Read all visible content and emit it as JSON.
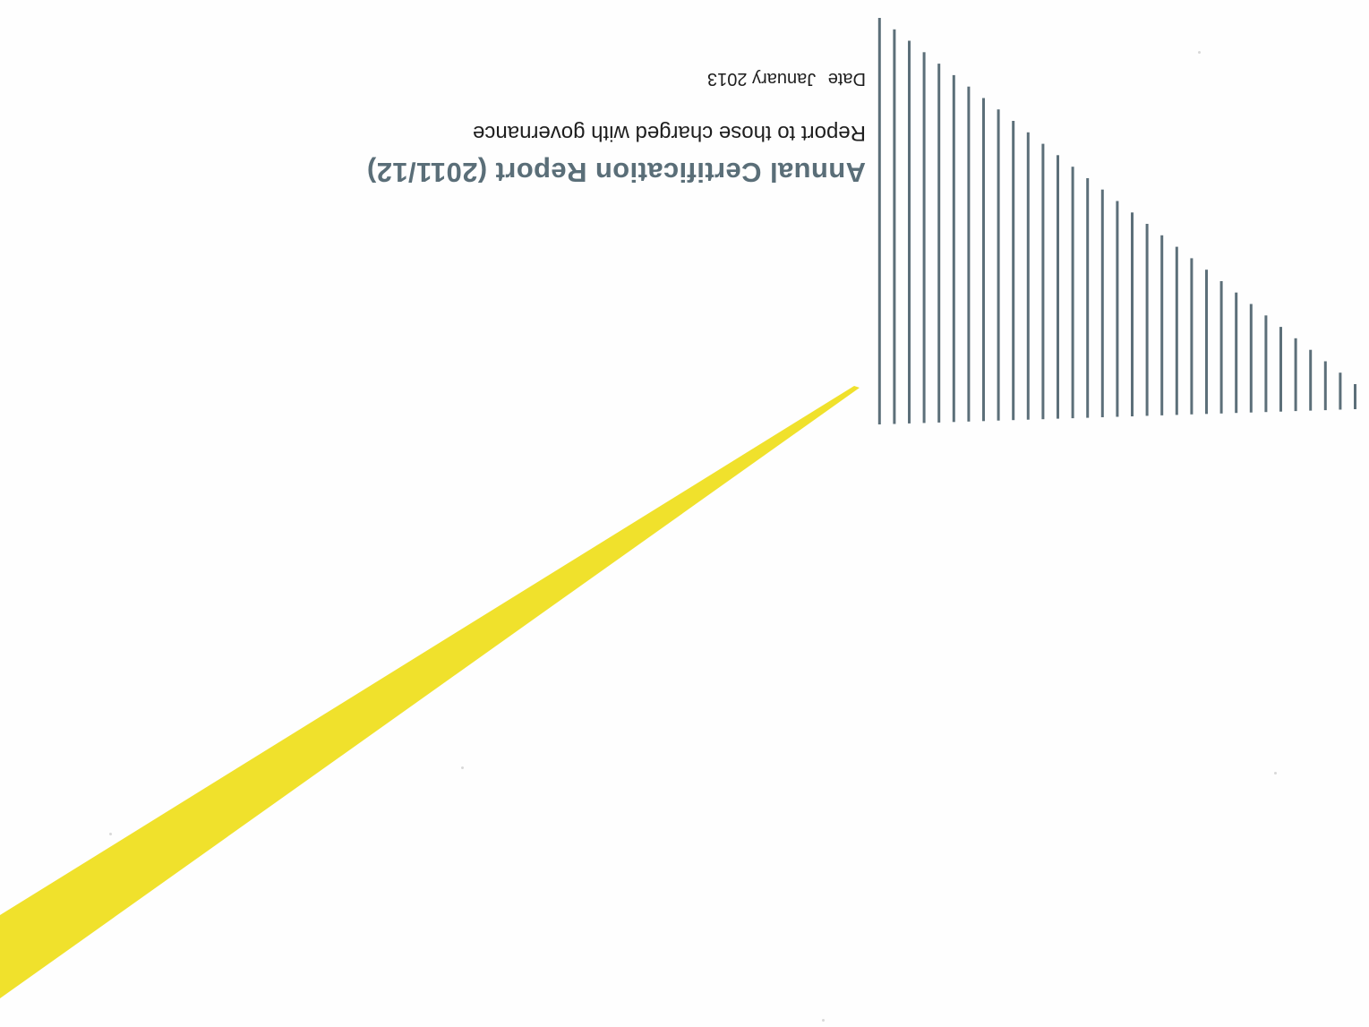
{
  "document": {
    "title": "Annual Certification Report (2011/12)",
    "subtitle": "Report to those charged with governance",
    "date_label": "Date",
    "date_value": "January 2013"
  },
  "colors": {
    "title": "#5a6e78",
    "text": "#1e1e1e",
    "stripes": "#5c6f79",
    "yellow_wedge": "#f0e12c",
    "background": "#fefefe"
  }
}
